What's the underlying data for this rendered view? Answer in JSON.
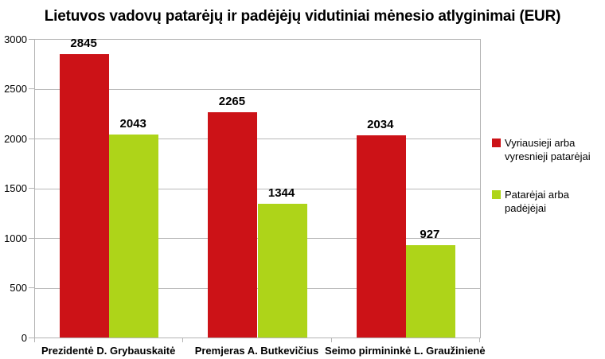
{
  "title": "Lietuvos vadovų patarėjų ir padėjėjų vidutiniai mėnesio atlyginimai (EUR)",
  "colors": {
    "series1": "#cc1217",
    "series2": "#aed419",
    "grid": "#b9b9b9",
    "axis": "#b3b3b3",
    "text": "#000000",
    "background": "#ffffff"
  },
  "chart_data": {
    "type": "bar",
    "title": "Lietuvos vadovų patarėjų ir padėjėjų vidutiniai mėnesio atlyginimai (EUR)",
    "categories": [
      "Prezidentė D. Grybauskaitė",
      "Premjeras A. Butkevičius",
      "Seimo pirmininkė L. Graužinienė"
    ],
    "series": [
      {
        "name": "Vyriausieji arba vyresnieji patarėjai",
        "legend_lines": [
          "Vyriausieji arba",
          "vyresnieji patarėjai"
        ],
        "color": "#cc1217",
        "values": [
          2845,
          2265,
          2034
        ]
      },
      {
        "name": "Patarėjai arba padėjėjai",
        "legend_lines": [
          "Patarėjai arba",
          "padėjėjai"
        ],
        "color": "#aed419",
        "values": [
          2043,
          1344,
          927
        ]
      }
    ],
    "xlabel": "",
    "ylabel": "",
    "ylim": [
      0,
      3000
    ],
    "yticks": [
      0,
      500,
      1000,
      1500,
      2000,
      2500,
      3000
    ],
    "grid": true,
    "legend_position": "right",
    "data_labels": true
  }
}
